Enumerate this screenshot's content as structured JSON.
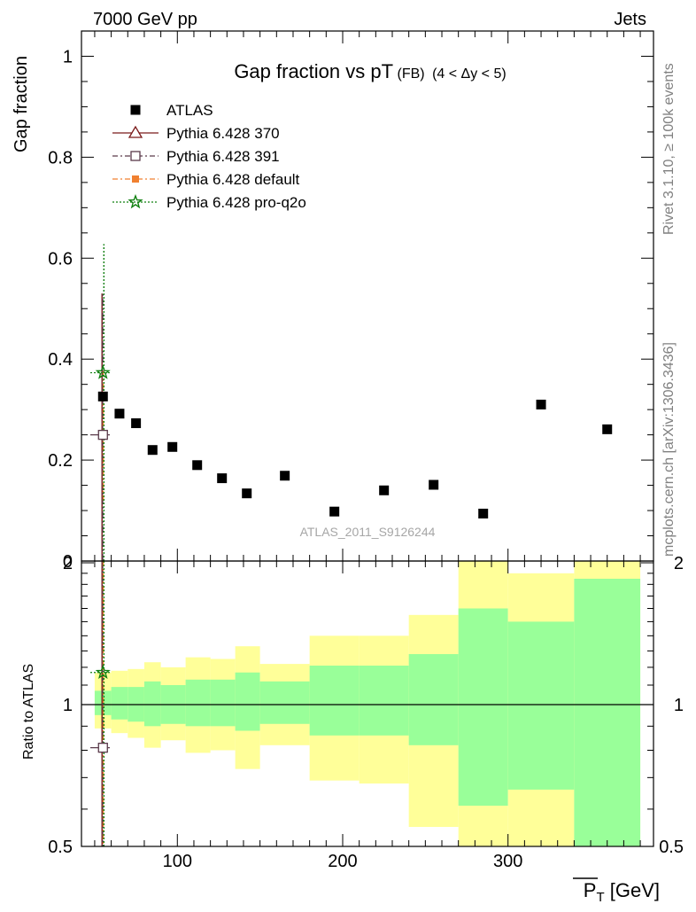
{
  "header": {
    "left_label": "7000 GeV pp",
    "right_label": "Jets",
    "side_note_top": "Rivet 3.1.10, ≥ 100k events",
    "side_note_bottom": "mcplots.cern.ch [arXiv:1306.3436]",
    "watermark": "ATLAS_2011_S9126244"
  },
  "chart_data": [
    {
      "type": "scatter",
      "title": "Gap fraction vs pT",
      "title_sub": "(FB)",
      "title_tail": "(4 < Δy < 5)",
      "ylabel": "Gap fraction",
      "xlim": [
        42,
        388
      ],
      "ylim": [
        0,
        1.05
      ],
      "y_ticks": [
        "0",
        "0.2",
        "0.4",
        "0.6",
        "0.8",
        "1"
      ],
      "legend_position": "top-left",
      "legend": [
        {
          "label": "ATLAS",
          "marker": "square",
          "color": "#000000",
          "line": "none"
        },
        {
          "label": "Pythia 6.428 370",
          "marker": "triangle-open",
          "color": "#7a1a1a",
          "line": "solid"
        },
        {
          "label": "Pythia 6.428 391",
          "marker": "square-open",
          "color": "#5a3a4a",
          "line": "dashdot"
        },
        {
          "label": "Pythia 6.428 default",
          "marker": "square",
          "color": "#f08030",
          "line": "dashdot"
        },
        {
          "label": "Pythia 6.428 pro-q2o",
          "marker": "star",
          "color": "#108010",
          "line": "dotted"
        }
      ],
      "series": [
        {
          "name": "ATLAS",
          "x": [
            55,
            65,
            75,
            85,
            97,
            112,
            127,
            142,
            165,
            195,
            225,
            255,
            285,
            320,
            360
          ],
          "y": [
            0.326,
            0.292,
            0.273,
            0.22,
            0.226,
            0.19,
            0.164,
            0.134,
            0.169,
            0.098,
            0.14,
            0.151,
            0.094,
            0.31,
            0.261
          ]
        },
        {
          "name": "Pythia 6.428 370",
          "x": [
            55
          ],
          "y": [
            0.25
          ],
          "y_err_low": [
            0.25
          ],
          "y_err_high": [
            0.28
          ]
        },
        {
          "name": "Pythia 6.428 391",
          "x": [
            55
          ],
          "y": [
            0.25
          ],
          "y_err_low": [
            0.25
          ],
          "y_err_high": [
            0.28
          ]
        },
        {
          "name": "Pythia 6.428 default",
          "x": [
            55
          ],
          "y": [
            0.25
          ],
          "y_err_low": [
            0.13
          ],
          "y_err_high": [
            0.13
          ]
        },
        {
          "name": "Pythia 6.428 pro-q2o",
          "x": [
            55
          ],
          "y": [
            0.373
          ],
          "y_err_low": [
            0.373
          ],
          "y_err_high": [
            0.255
          ]
        }
      ]
    },
    {
      "type": "area",
      "ylabel": "Ratio to ATLAS",
      "xlabel": "P̅T [GeV]",
      "xlabel_main": "P",
      "xlabel_sub": "T",
      "xlabel_unit": " [GeV]",
      "xlim": [
        42,
        388
      ],
      "ylim": [
        0.35,
        2.3
      ],
      "x_ticks": [
        "100",
        "200",
        "300"
      ],
      "y_ticks": [
        "0.5",
        "1",
        "2"
      ],
      "bins": [
        {
          "lo": 50,
          "hi": 60,
          "green": [
            0.95,
            1.07
          ],
          "yellow": [
            0.89,
            1.17
          ]
        },
        {
          "lo": 60,
          "hi": 70,
          "green": [
            0.93,
            1.09
          ],
          "yellow": [
            0.87,
            1.18
          ]
        },
        {
          "lo": 70,
          "hi": 80,
          "green": [
            0.92,
            1.09
          ],
          "yellow": [
            0.85,
            1.19
          ]
        },
        {
          "lo": 80,
          "hi": 90,
          "green": [
            0.9,
            1.12
          ],
          "yellow": [
            0.81,
            1.23
          ]
        },
        {
          "lo": 90,
          "hi": 105,
          "green": [
            0.91,
            1.1
          ],
          "yellow": [
            0.84,
            1.2
          ]
        },
        {
          "lo": 105,
          "hi": 120,
          "green": [
            0.9,
            1.13
          ],
          "yellow": [
            0.79,
            1.26
          ]
        },
        {
          "lo": 120,
          "hi": 135,
          "green": [
            0.9,
            1.13
          ],
          "yellow": [
            0.8,
            1.25
          ]
        },
        {
          "lo": 135,
          "hi": 150,
          "green": [
            0.88,
            1.17
          ],
          "yellow": [
            0.73,
            1.33
          ]
        },
        {
          "lo": 150,
          "hi": 180,
          "green": [
            0.91,
            1.12
          ],
          "yellow": [
            0.82,
            1.22
          ]
        },
        {
          "lo": 180,
          "hi": 210,
          "green": [
            0.86,
            1.21
          ],
          "yellow": [
            0.69,
            1.4
          ]
        },
        {
          "lo": 210,
          "hi": 240,
          "green": [
            0.86,
            1.21
          ],
          "yellow": [
            0.68,
            1.4
          ]
        },
        {
          "lo": 240,
          "hi": 270,
          "green": [
            0.82,
            1.28
          ],
          "yellow": [
            0.55,
            1.55
          ]
        },
        {
          "lo": 270,
          "hi": 300,
          "green": [
            0.61,
            1.6
          ],
          "yellow": [
            0.3,
            2.1
          ]
        },
        {
          "lo": 300,
          "hi": 340,
          "green": [
            0.66,
            1.5
          ],
          "yellow": [
            0.3,
            1.9
          ]
        },
        {
          "lo": 340,
          "hi": 380,
          "green": [
            0.37,
            1.85
          ],
          "yellow": [
            0.3,
            2.4
          ]
        }
      ],
      "series": [
        {
          "name": "Pythia 6.428 391",
          "x": [
            55
          ],
          "y": [
            0.81
          ]
        },
        {
          "name": "Pythia 6.428 pro-q2o",
          "x": [
            55
          ],
          "y": [
            1.17
          ]
        }
      ],
      "reference_line": 1
    }
  ]
}
